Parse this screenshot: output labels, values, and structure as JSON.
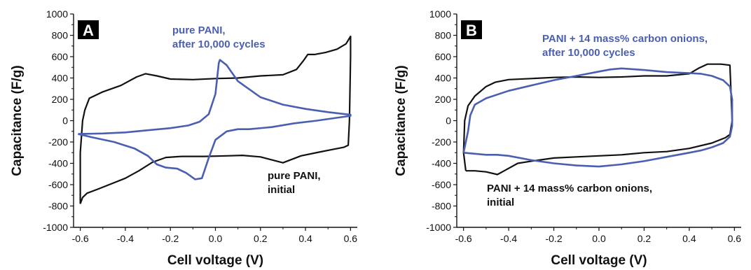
{
  "colors": {
    "initial": "#111111",
    "cycled": "#4a5fb0",
    "axis": "#111111"
  },
  "chart_data": [
    {
      "type": "line",
      "panel_label": "A",
      "xlabel": "Cell voltage (V)",
      "ylabel": "Capacitance (F/g)",
      "xlim": [
        -0.63,
        0.63
      ],
      "ylim": [
        -1000,
        1000
      ],
      "x_ticks": [
        "-0.6",
        "-0.4",
        "-0.2",
        "0.0",
        "0.2",
        "0.4",
        "0.6"
      ],
      "y_ticks": [
        "-1000",
        "-800",
        "-600",
        "-400",
        "-200",
        "0",
        "200",
        "400",
        "600",
        "800",
        "1000"
      ],
      "annotations": [
        {
          "lines": [
            "pure PANI,",
            "after 10,000 cycles"
          ],
          "series": "cycled"
        },
        {
          "lines": [
            "pure PANI,",
            "initial"
          ],
          "series": "initial"
        }
      ],
      "series": [
        {
          "key": "initial",
          "points": [
            [
              -0.6,
              -780
            ],
            [
              -0.59,
              -720
            ],
            [
              -0.57,
              -680
            ],
            [
              -0.52,
              -640
            ],
            [
              -0.46,
              -590
            ],
            [
              -0.4,
              -540
            ],
            [
              -0.34,
              -470
            ],
            [
              -0.28,
              -390
            ],
            [
              -0.22,
              -345
            ],
            [
              -0.15,
              -335
            ],
            [
              -0.05,
              -335
            ],
            [
              0.05,
              -330
            ],
            [
              0.12,
              -325
            ],
            [
              0.2,
              -340
            ],
            [
              0.3,
              -395
            ],
            [
              0.38,
              -330
            ],
            [
              0.46,
              -295
            ],
            [
              0.52,
              -270
            ],
            [
              0.57,
              -250
            ],
            [
              0.59,
              -230
            ],
            [
              0.595,
              0
            ],
            [
              0.6,
              600
            ],
            [
              0.6,
              790
            ],
            [
              0.58,
              720
            ],
            [
              0.54,
              670
            ],
            [
              0.49,
              640
            ],
            [
              0.44,
              620
            ],
            [
              0.41,
              620
            ],
            [
              0.39,
              560
            ],
            [
              0.36,
              480
            ],
            [
              0.3,
              430
            ],
            [
              0.2,
              420
            ],
            [
              0.1,
              400
            ],
            [
              0.0,
              395
            ],
            [
              -0.1,
              385
            ],
            [
              -0.2,
              390
            ],
            [
              -0.26,
              420
            ],
            [
              -0.31,
              440
            ],
            [
              -0.35,
              410
            ],
            [
              -0.42,
              330
            ],
            [
              -0.5,
              270
            ],
            [
              -0.56,
              210
            ],
            [
              -0.58,
              100
            ],
            [
              -0.59,
              0
            ],
            [
              -0.6,
              -300
            ],
            [
              -0.6,
              -780
            ]
          ]
        },
        {
          "key": "cycled",
          "points": [
            [
              -0.61,
              -125
            ],
            [
              -0.5,
              -120
            ],
            [
              -0.4,
              -110
            ],
            [
              -0.3,
              -90
            ],
            [
              -0.2,
              -70
            ],
            [
              -0.12,
              -45
            ],
            [
              -0.07,
              -10
            ],
            [
              -0.03,
              60
            ],
            [
              0.0,
              250
            ],
            [
              0.015,
              540
            ],
            [
              0.02,
              570
            ],
            [
              0.05,
              520
            ],
            [
              0.1,
              370
            ],
            [
              0.2,
              220
            ],
            [
              0.3,
              150
            ],
            [
              0.4,
              110
            ],
            [
              0.5,
              80
            ],
            [
              0.6,
              55
            ],
            [
              0.6,
              45
            ],
            [
              0.55,
              30
            ],
            [
              0.45,
              0
            ],
            [
              0.35,
              -25
            ],
            [
              0.25,
              -60
            ],
            [
              0.15,
              -80
            ],
            [
              0.1,
              -80
            ],
            [
              0.05,
              -100
            ],
            [
              0.0,
              -180
            ],
            [
              -0.03,
              -350
            ],
            [
              -0.06,
              -540
            ],
            [
              -0.09,
              -550
            ],
            [
              -0.13,
              -490
            ],
            [
              -0.17,
              -450
            ],
            [
              -0.22,
              -440
            ],
            [
              -0.26,
              -410
            ],
            [
              -0.3,
              -330
            ],
            [
              -0.36,
              -260
            ],
            [
              -0.45,
              -200
            ],
            [
              -0.55,
              -155
            ],
            [
              -0.61,
              -125
            ]
          ]
        }
      ]
    },
    {
      "type": "line",
      "panel_label": "B",
      "xlabel": "Cell voltage (V)",
      "ylabel": "Capacitance (F/g)",
      "xlim": [
        -0.63,
        0.63
      ],
      "ylim": [
        -1000,
        1000
      ],
      "x_ticks": [
        "-0.6",
        "-0.4",
        "-0.2",
        "0.0",
        "0.2",
        "0.4",
        "0.6"
      ],
      "y_ticks": [
        "-1000",
        "-800",
        "-600",
        "-400",
        "-200",
        "0",
        "200",
        "400",
        "600",
        "800",
        "1000"
      ],
      "annotations": [
        {
          "lines": [
            "PANI + 14 mass% carbon onions,",
            "after 10,000 cycles"
          ],
          "series": "cycled"
        },
        {
          "lines": [
            "PANI + 14 mass% carbon onions,",
            "initial"
          ],
          "series": "initial"
        }
      ],
      "series": [
        {
          "key": "initial",
          "points": [
            [
              -0.59,
              -470
            ],
            [
              -0.55,
              -470
            ],
            [
              -0.5,
              -480
            ],
            [
              -0.45,
              -505
            ],
            [
              -0.42,
              -470
            ],
            [
              -0.36,
              -400
            ],
            [
              -0.3,
              -380
            ],
            [
              -0.2,
              -350
            ],
            [
              -0.1,
              -340
            ],
            [
              0.0,
              -330
            ],
            [
              0.1,
              -320
            ],
            [
              0.2,
              -300
            ],
            [
              0.3,
              -290
            ],
            [
              0.4,
              -260
            ],
            [
              0.5,
              -210
            ],
            [
              0.56,
              -160
            ],
            [
              0.58,
              -130
            ],
            [
              0.59,
              0
            ],
            [
              0.58,
              520
            ],
            [
              0.54,
              530
            ],
            [
              0.48,
              530
            ],
            [
              0.44,
              490
            ],
            [
              0.4,
              440
            ],
            [
              0.3,
              420
            ],
            [
              0.2,
              420
            ],
            [
              0.1,
              410
            ],
            [
              0.0,
              405
            ],
            [
              -0.1,
              410
            ],
            [
              -0.2,
              405
            ],
            [
              -0.3,
              395
            ],
            [
              -0.4,
              385
            ],
            [
              -0.46,
              360
            ],
            [
              -0.5,
              320
            ],
            [
              -0.55,
              230
            ],
            [
              -0.58,
              140
            ],
            [
              -0.595,
              0
            ],
            [
              -0.6,
              -300
            ],
            [
              -0.59,
              -470
            ]
          ]
        },
        {
          "key": "cycled",
          "points": [
            [
              -0.6,
              -300
            ],
            [
              -0.58,
              -100
            ],
            [
              -0.57,
              50
            ],
            [
              -0.55,
              150
            ],
            [
              -0.5,
              210
            ],
            [
              -0.4,
              280
            ],
            [
              -0.3,
              330
            ],
            [
              -0.2,
              380
            ],
            [
              -0.1,
              420
            ],
            [
              0.0,
              460
            ],
            [
              0.05,
              480
            ],
            [
              0.1,
              490
            ],
            [
              0.2,
              475
            ],
            [
              0.3,
              455
            ],
            [
              0.4,
              445
            ],
            [
              0.45,
              440
            ],
            [
              0.5,
              420
            ],
            [
              0.55,
              380
            ],
            [
              0.58,
              320
            ],
            [
              0.59,
              200
            ],
            [
              0.59,
              -50
            ],
            [
              0.58,
              -150
            ],
            [
              0.55,
              -210
            ],
            [
              0.5,
              -250
            ],
            [
              0.45,
              -280
            ],
            [
              0.4,
              -300
            ],
            [
              0.3,
              -340
            ],
            [
              0.2,
              -380
            ],
            [
              0.1,
              -410
            ],
            [
              0.0,
              -430
            ],
            [
              -0.1,
              -420
            ],
            [
              -0.2,
              -400
            ],
            [
              -0.3,
              -370
            ],
            [
              -0.4,
              -330
            ],
            [
              -0.45,
              -320
            ],
            [
              -0.5,
              -320
            ],
            [
              -0.55,
              -310
            ],
            [
              -0.6,
              -300
            ]
          ]
        }
      ]
    }
  ]
}
